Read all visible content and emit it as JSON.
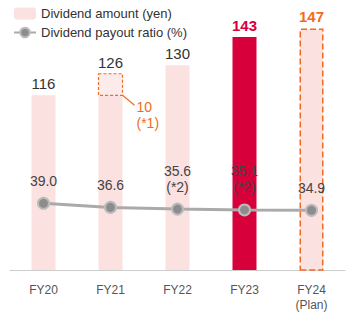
{
  "chart_data": {
    "type": "bar",
    "categories": [
      "FY20",
      "FY21",
      "FY22",
      "FY23",
      "FY24\n(Plan)"
    ],
    "series": [
      {
        "name": "Dividend amount (yen)",
        "type": "bar",
        "values": [
          116,
          126,
          130,
          143,
          147
        ],
        "colors": [
          "#fbe1e0",
          "#fbe1e0",
          "#fbe1e0",
          "#d7003a",
          "#fbe1e0"
        ],
        "color": "#fbe1e0",
        "data_labels": true
      },
      {
        "name": "Dividend payout ratio (%)",
        "type": "line",
        "axis": "y2",
        "color": "#8c8c8c",
        "marker": "circle",
        "values": [
          39.0,
          36.6,
          35.6,
          35.1,
          34.9
        ],
        "value_labels": [
          "39.0",
          "36.6",
          "35.6\n(*2)",
          "35.1\n(*2)",
          "34.9"
        ],
        "data_labels": true
      }
    ],
    "annotations": [
      {
        "category": "FY21",
        "value": 10,
        "text": "10\n(*1)",
        "color": "#f26b21"
      }
    ],
    "ylim": [
      35,
      150
    ],
    "yticks": [
      35,
      150
    ],
    "y2lim": [
      0,
      145
    ],
    "y2ticks": [
      0,
      145
    ],
    "tick_labels": "x",
    "grid": false,
    "legend": "top-left"
  }
}
